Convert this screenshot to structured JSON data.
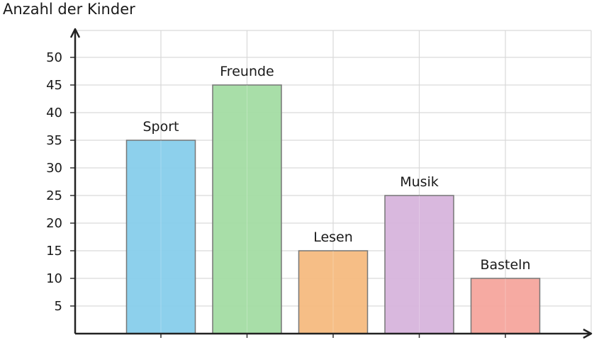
{
  "chart_data": {
    "type": "bar",
    "title": "",
    "xlabel": "",
    "ylabel": "Anzahl der Kinder",
    "categories": [
      "Sport",
      "Freunde",
      "Lesen",
      "Musik",
      "Basteln"
    ],
    "values": [
      35,
      45,
      15,
      25,
      10
    ],
    "colors": [
      "#87ceeb",
      "#a3dca3",
      "#f5bb80",
      "#d7b4dc",
      "#f5a59d"
    ],
    "ylim": [
      0,
      50
    ],
    "yticks": [
      5,
      10,
      15,
      20,
      25,
      30,
      35,
      40,
      45,
      50
    ],
    "grid": true,
    "data_labels": "category-above-bar"
  }
}
